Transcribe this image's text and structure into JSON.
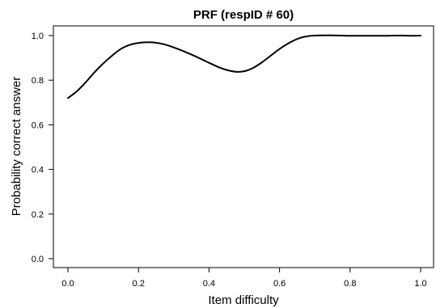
{
  "chart_data": {
    "type": "line",
    "title": "PRF (respID # 60)",
    "xlabel": "Item difficulty",
    "ylabel": "Probability correct answer",
    "xlim": [
      0,
      1
    ],
    "ylim": [
      0,
      1
    ],
    "xticks": [
      "0.0",
      "0.2",
      "0.4",
      "0.6",
      "0.8",
      "1.0"
    ],
    "yticks": [
      "0.0",
      "0.2",
      "0.4",
      "0.6",
      "0.8",
      "1.0"
    ],
    "grid": false,
    "series": [
      {
        "color": "#000000",
        "x": [
          0.0,
          0.025,
          0.05,
          0.075,
          0.1,
          0.125,
          0.15,
          0.175,
          0.2,
          0.225,
          0.25,
          0.275,
          0.3,
          0.325,
          0.35,
          0.375,
          0.4,
          0.425,
          0.45,
          0.475,
          0.5,
          0.525,
          0.55,
          0.575,
          0.6,
          0.625,
          0.65,
          0.675,
          0.7,
          0.725,
          0.75,
          0.775,
          0.8,
          0.825,
          0.85,
          0.875,
          0.9,
          0.925,
          0.95,
          0.975,
          1.0
        ],
        "y": [
          0.72,
          0.75,
          0.79,
          0.835,
          0.875,
          0.91,
          0.94,
          0.958,
          0.967,
          0.97,
          0.968,
          0.96,
          0.947,
          0.932,
          0.915,
          0.897,
          0.878,
          0.86,
          0.846,
          0.838,
          0.84,
          0.855,
          0.88,
          0.91,
          0.94,
          0.965,
          0.985,
          0.996,
          1.0,
          1.001,
          1.001,
          1.0,
          0.999,
          0.999,
          0.999,
          0.999,
          0.999,
          1.0,
          1.0,
          0.999,
          1.0
        ]
      }
    ]
  }
}
